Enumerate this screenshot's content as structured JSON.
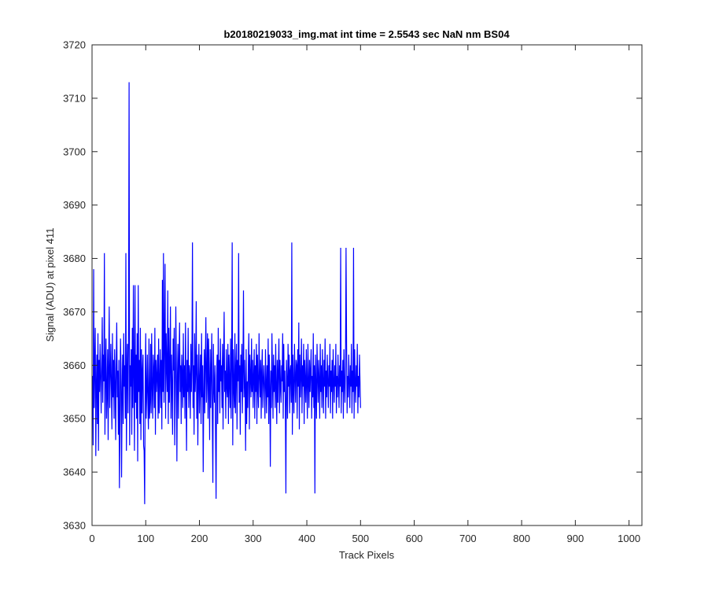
{
  "chart_data": {
    "type": "line",
    "title": "b20180219033_img.mat int time = 2.5543 sec  NaN nm BS04",
    "xlabel": "Track Pixels",
    "ylabel": "Signal (ADU) at pixel 411",
    "xlim": [
      0,
      1024
    ],
    "ylim": [
      3630,
      3720
    ],
    "xticks": [
      0,
      100,
      200,
      300,
      400,
      500,
      600,
      700,
      800,
      900,
      1000
    ],
    "yticks": [
      3630,
      3640,
      3650,
      3660,
      3670,
      3680,
      3690,
      3700,
      3710,
      3720
    ],
    "grid": false,
    "box": true,
    "series": [
      {
        "color": "#0000ff",
        "x_start": 1,
        "x_step": 1,
        "values": [
          3658,
          3645,
          3678,
          3652,
          3660,
          3667,
          3643,
          3656,
          3662,
          3649,
          3666,
          3644,
          3661,
          3655,
          3664,
          3658,
          3651,
          3660,
          3669,
          3653,
          3662,
          3657,
          3681,
          3647,
          3659,
          3665,
          3650,
          3655,
          3663,
          3646,
          3660,
          3671,
          3652,
          3658,
          3664,
          3656,
          3648,
          3666,
          3654,
          3661,
          3650,
          3663,
          3657,
          3646,
          3660,
          3668,
          3654,
          3659,
          3647,
          3661,
          3637,
          3650,
          3665,
          3659,
          3639,
          3655,
          3662,
          3649,
          3666,
          3656,
          3660,
          3650,
          3681,
          3644,
          3658,
          3664,
          3651,
          3667,
          3713,
          3645,
          3660,
          3656,
          3663,
          3647,
          3667,
          3652,
          3675,
          3658,
          3644,
          3675,
          3653,
          3662,
          3650,
          3666,
          3642,
          3675,
          3655,
          3661,
          3649,
          3667,
          3646,
          3663,
          3651,
          3659,
          3662,
          3645,
          3644,
          3634,
          3657,
          3666,
          3650,
          3655,
          3662,
          3653,
          3648,
          3665,
          3650,
          3653,
          3664,
          3651,
          3666,
          3656,
          3650,
          3662,
          3659,
          3652,
          3667,
          3647,
          3661,
          3655,
          3658,
          3662,
          3650,
          3665,
          3651,
          3657,
          3663,
          3652,
          3661,
          3648,
          3676,
          3655,
          3681,
          3653,
          3664,
          3679,
          3650,
          3666,
          3660,
          3655,
          3674,
          3649,
          3667,
          3653,
          3660,
          3671,
          3650,
          3662,
          3656,
          3647,
          3665,
          3659,
          3667,
          3645,
          3655,
          3671,
          3660,
          3642,
          3658,
          3664,
          3650,
          3661,
          3668,
          3655,
          3660,
          3649,
          3662,
          3658,
          3652,
          3666,
          3654,
          3660,
          3650,
          3668,
          3656,
          3644,
          3661,
          3655,
          3667,
          3652,
          3660,
          3658,
          3650,
          3664,
          3655,
          3661,
          3683,
          3652,
          3660,
          3647,
          3666,
          3655,
          3659,
          3672,
          3650,
          3662,
          3645,
          3657,
          3664,
          3651,
          3657,
          3662,
          3649,
          3666,
          3654,
          3660,
          3640,
          3654,
          3663,
          3651,
          3661,
          3669,
          3653,
          3658,
          3666,
          3650,
          3665,
          3657,
          3646,
          3663,
          3652,
          3659,
          3666,
          3650,
          3638,
          3664,
          3656,
          3653,
          3660,
          3647,
          3635,
          3658,
          3662,
          3649,
          3667,
          3655,
          3661,
          3651,
          3665,
          3657,
          3660,
          3652,
          3664,
          3648,
          3661,
          3670,
          3655,
          3659,
          3650,
          3663,
          3656,
          3654,
          3664,
          3649,
          3662,
          3657,
          3652,
          3665,
          3650,
          3661,
          3683,
          3645,
          3663,
          3656,
          3652,
          3666,
          3651,
          3659,
          3664,
          3648,
          3661,
          3657,
          3681,
          3653,
          3660,
          3647,
          3662,
          3655,
          3664,
          3651,
          3659,
          3674,
          3654,
          3661,
          3656,
          3644,
          3663,
          3649,
          3657,
          3652,
          3660,
          3666,
          3648,
          3662,
          3658,
          3654,
          3665,
          3655,
          3661,
          3652,
          3658,
          3663,
          3650,
          3660,
          3655,
          3664,
          3649,
          3662,
          3656,
          3652,
          3666,
          3658,
          3654,
          3661,
          3650,
          3659,
          3663,
          3652,
          3657,
          3660,
          3655,
          3650,
          3663,
          3657,
          3651,
          3660,
          3654,
          3665,
          3649,
          3662,
          3656,
          3641,
          3659,
          3652,
          3666,
          3658,
          3650,
          3662,
          3655,
          3660,
          3652,
          3664,
          3656,
          3649,
          3661,
          3653,
          3659,
          3665,
          3651,
          3661,
          3656,
          3653,
          3660,
          3657,
          3666,
          3650,
          3664,
          3655,
          3659,
          3652,
          3636,
          3661,
          3657,
          3650,
          3664,
          3656,
          3662,
          3651,
          3659,
          3660,
          3653,
          3683,
          3647,
          3662,
          3656,
          3651,
          3664,
          3658,
          3653,
          3661,
          3660,
          3650,
          3663,
          3656,
          3668,
          3648,
          3662,
          3654,
          3658,
          3665,
          3651,
          3660,
          3656,
          3664,
          3649,
          3661,
          3657,
          3653,
          3663,
          3656,
          3650,
          3664,
          3657,
          3652,
          3661,
          3655,
          3659,
          3663,
          3650,
          3658,
          3654,
          3666,
          3652,
          3660,
          3636,
          3662,
          3656,
          3650,
          3664,
          3658,
          3653,
          3661,
          3657,
          3650,
          3664,
          3655,
          3660,
          3652,
          3663,
          3657,
          3651,
          3661,
          3656,
          3665,
          3650,
          3659,
          3654,
          3662,
          3657,
          3652,
          3660,
          3656,
          3664,
          3651,
          3659,
          3655,
          3661,
          3650,
          3663,
          3657,
          3653,
          3660,
          3656,
          3664,
          3651,
          3658,
          3654,
          3662,
          3657,
          3652,
          3660,
          3656,
          3682,
          3651,
          3659,
          3655,
          3661,
          3650,
          3663,
          3657,
          3653,
          3660,
          3682,
          3664,
          3651,
          3658,
          3654,
          3662,
          3657,
          3652,
          3660,
          3656,
          3664,
          3651,
          3659,
          3655,
          3682,
          3650,
          3663,
          3657,
          3653,
          3660,
          3656,
          3664,
          3651,
          3658,
          3654,
          3662,
          3657,
          3652
        ]
      }
    ]
  }
}
